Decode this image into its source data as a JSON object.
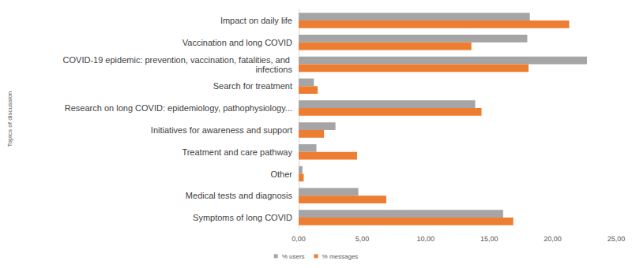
{
  "chart_data": {
    "type": "bar",
    "orientation": "horizontal",
    "y_label": "Topics of discussion",
    "categories": [
      "Symptoms of long COVID",
      "Medical tests and diagnosis",
      "Other",
      "Treatment and care pathway",
      "Initiatives for awareness and support",
      "Research on long COVID: epidemiology, pathophysiology...",
      "Search for treatment",
      "COVID-19 epidemic: prevention, vaccination, fatalities, and infections",
      "Vaccination and long COVID",
      "Impact on daily life"
    ],
    "series": [
      {
        "name": "% users",
        "color": "#a5a5a5",
        "values": [
          16.1,
          4.7,
          0.3,
          1.4,
          2.9,
          13.9,
          1.2,
          22.7,
          18.0,
          18.2
        ]
      },
      {
        "name": "% messages",
        "color": "#ed7d31",
        "values": [
          16.9,
          6.9,
          0.4,
          4.6,
          2.0,
          14.4,
          1.5,
          18.1,
          13.6,
          21.3
        ]
      }
    ],
    "xlim": [
      0,
      25
    ],
    "xticks": [
      {
        "value": 0,
        "label": "0,00"
      },
      {
        "value": 5,
        "label": "5,00"
      },
      {
        "value": 10,
        "label": "10,00"
      },
      {
        "value": 15,
        "label": "15,00"
      },
      {
        "value": 20,
        "label": "20,00"
      },
      {
        "value": 25,
        "label": "25,00"
      }
    ],
    "grid": false,
    "legend": "bottom"
  }
}
